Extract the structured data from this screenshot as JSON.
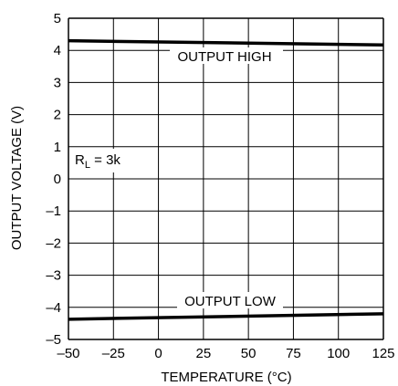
{
  "chart_data": {
    "type": "line",
    "title": "",
    "xlabel": "TEMPERATURE (°C)",
    "ylabel": "OUTPUT VOLTAGE (V)",
    "xlim": [
      -50,
      125
    ],
    "ylim": [
      -5,
      5
    ],
    "xticks": [
      -50,
      -25,
      0,
      25,
      50,
      75,
      100,
      125
    ],
    "yticks": [
      -5,
      -4,
      -3,
      -2,
      -1,
      0,
      1,
      2,
      3,
      4,
      5
    ],
    "xtick_labels": [
      "–50",
      "–25",
      "0",
      "25",
      "50",
      "75",
      "100",
      "125"
    ],
    "ytick_labels": [
      "–5",
      "–4",
      "–3",
      "–2",
      "–1",
      "0",
      "1",
      "2",
      "3",
      "4",
      "5"
    ],
    "grid": true,
    "series": [
      {
        "name": "OUTPUT HIGH",
        "x": [
          -50,
          125
        ],
        "y": [
          4.3,
          4.17
        ]
      },
      {
        "name": "OUTPUT LOW",
        "x": [
          -50,
          125
        ],
        "y": [
          -4.37,
          -4.2
        ]
      }
    ],
    "annotations": {
      "rl_main": "R",
      "rl_sub": "L",
      "rl_rest": " = 3k"
    },
    "colors": {
      "line": "#000000",
      "grid": "#000000"
    }
  }
}
